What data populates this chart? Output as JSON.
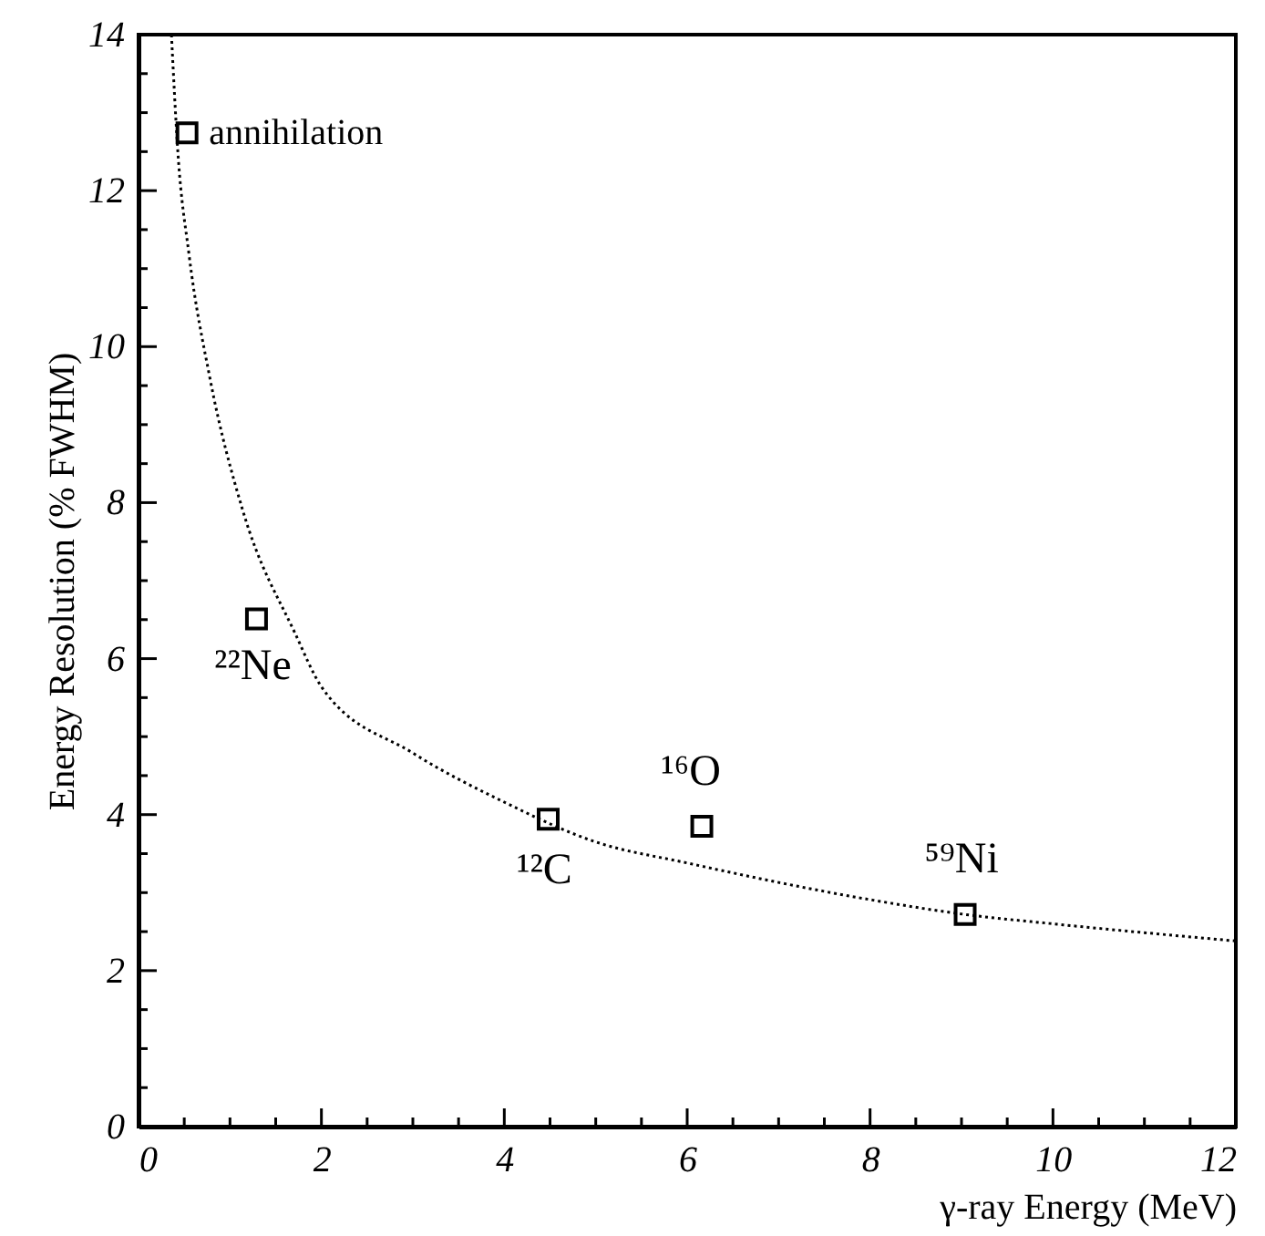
{
  "chart_data": {
    "type": "scatter",
    "xlabel": "γ-ray Energy (MeV)",
    "ylabel": "Energy Resolution (% FWHM)",
    "series": [
      {
        "color": "#000000",
        "marker": "square",
        "x": [
          0.53,
          1.29,
          4.48,
          6.16,
          9.04
        ],
        "values": [
          12.74,
          6.51,
          3.94,
          3.85,
          2.72
        ]
      },
      {
        "type": "line",
        "color": "#000000",
        "marker": "none",
        "line_style": "dotted",
        "x": [
          0.36,
          0.43,
          0.55,
          0.78,
          1.14,
          1.71,
          2,
          3,
          4,
          5,
          6,
          8,
          9.04,
          10,
          12
        ],
        "values": [
          14,
          12.5,
          11.2,
          9.6,
          7.9,
          6.33,
          5.64,
          4.79,
          4.16,
          3.65,
          3.38,
          2.91,
          2.72,
          2.6,
          2.38
        ]
      }
    ],
    "annotations": [
      {
        "text": "annihilation",
        "x": 0.53,
        "y": 12.74
      },
      {
        "text": "²²Ne",
        "x": 1.29,
        "y": 6.51
      },
      {
        "text": "¹²C",
        "x": 4.48,
        "y": 3.94
      },
      {
        "text": "¹⁶O",
        "x": 6.16,
        "y": 3.85
      },
      {
        "text": "⁵⁹Ni",
        "x": 9.04,
        "y": 2.72
      }
    ],
    "xlim": [
      0,
      12
    ],
    "ylim": [
      0,
      14
    ],
    "xticks": [
      0,
      {
        "value": 0.5,
        "label": null
      },
      {
        "value": 1,
        "label": null
      },
      {
        "value": 1.5,
        "label": null
      },
      2,
      {
        "value": 2.5,
        "label": null
      },
      {
        "value": 3,
        "label": null
      },
      {
        "value": 3.5,
        "label": null
      },
      4,
      {
        "value": 4.5,
        "label": null
      },
      {
        "value": 5,
        "label": null
      },
      {
        "value": 5.5,
        "label": null
      },
      6,
      {
        "value": 6.5,
        "label": null
      },
      {
        "value": 7,
        "label": null
      },
      {
        "value": 7.5,
        "label": null
      },
      8,
      {
        "value": 8.5,
        "label": null
      },
      {
        "value": 9,
        "label": null
      },
      {
        "value": 9.5,
        "label": null
      },
      10,
      {
        "value": 10.5,
        "label": null
      },
      {
        "value": 11,
        "label": null
      },
      {
        "value": 11.5,
        "label": null
      },
      12
    ],
    "yticks": [
      0,
      {
        "value": 0.5,
        "label": null
      },
      {
        "value": 1,
        "label": null
      },
      {
        "value": 1.5,
        "label": null
      },
      2,
      {
        "value": 2.5,
        "label": null
      },
      {
        "value": 3,
        "label": null
      },
      {
        "value": 3.5,
        "label": null
      },
      4,
      {
        "value": 4.5,
        "label": null
      },
      {
        "value": 5,
        "label": null
      },
      {
        "value": 5.5,
        "label": null
      },
      6,
      {
        "value": 6.5,
        "label": null
      },
      {
        "value": 7,
        "label": null
      },
      {
        "value": 7.5,
        "label": null
      },
      8,
      {
        "value": 8.5,
        "label": null
      },
      {
        "value": 9,
        "label": null
      },
      {
        "value": 9.5,
        "label": null
      },
      10,
      {
        "value": 10.5,
        "label": null
      },
      {
        "value": 11,
        "label": null
      },
      {
        "value": 11.5,
        "label": null
      },
      12,
      {
        "value": 12.5,
        "label": null
      },
      {
        "value": 13,
        "label": null
      },
      {
        "value": 13.5,
        "label": null
      },
      14
    ],
    "grid": false
  }
}
